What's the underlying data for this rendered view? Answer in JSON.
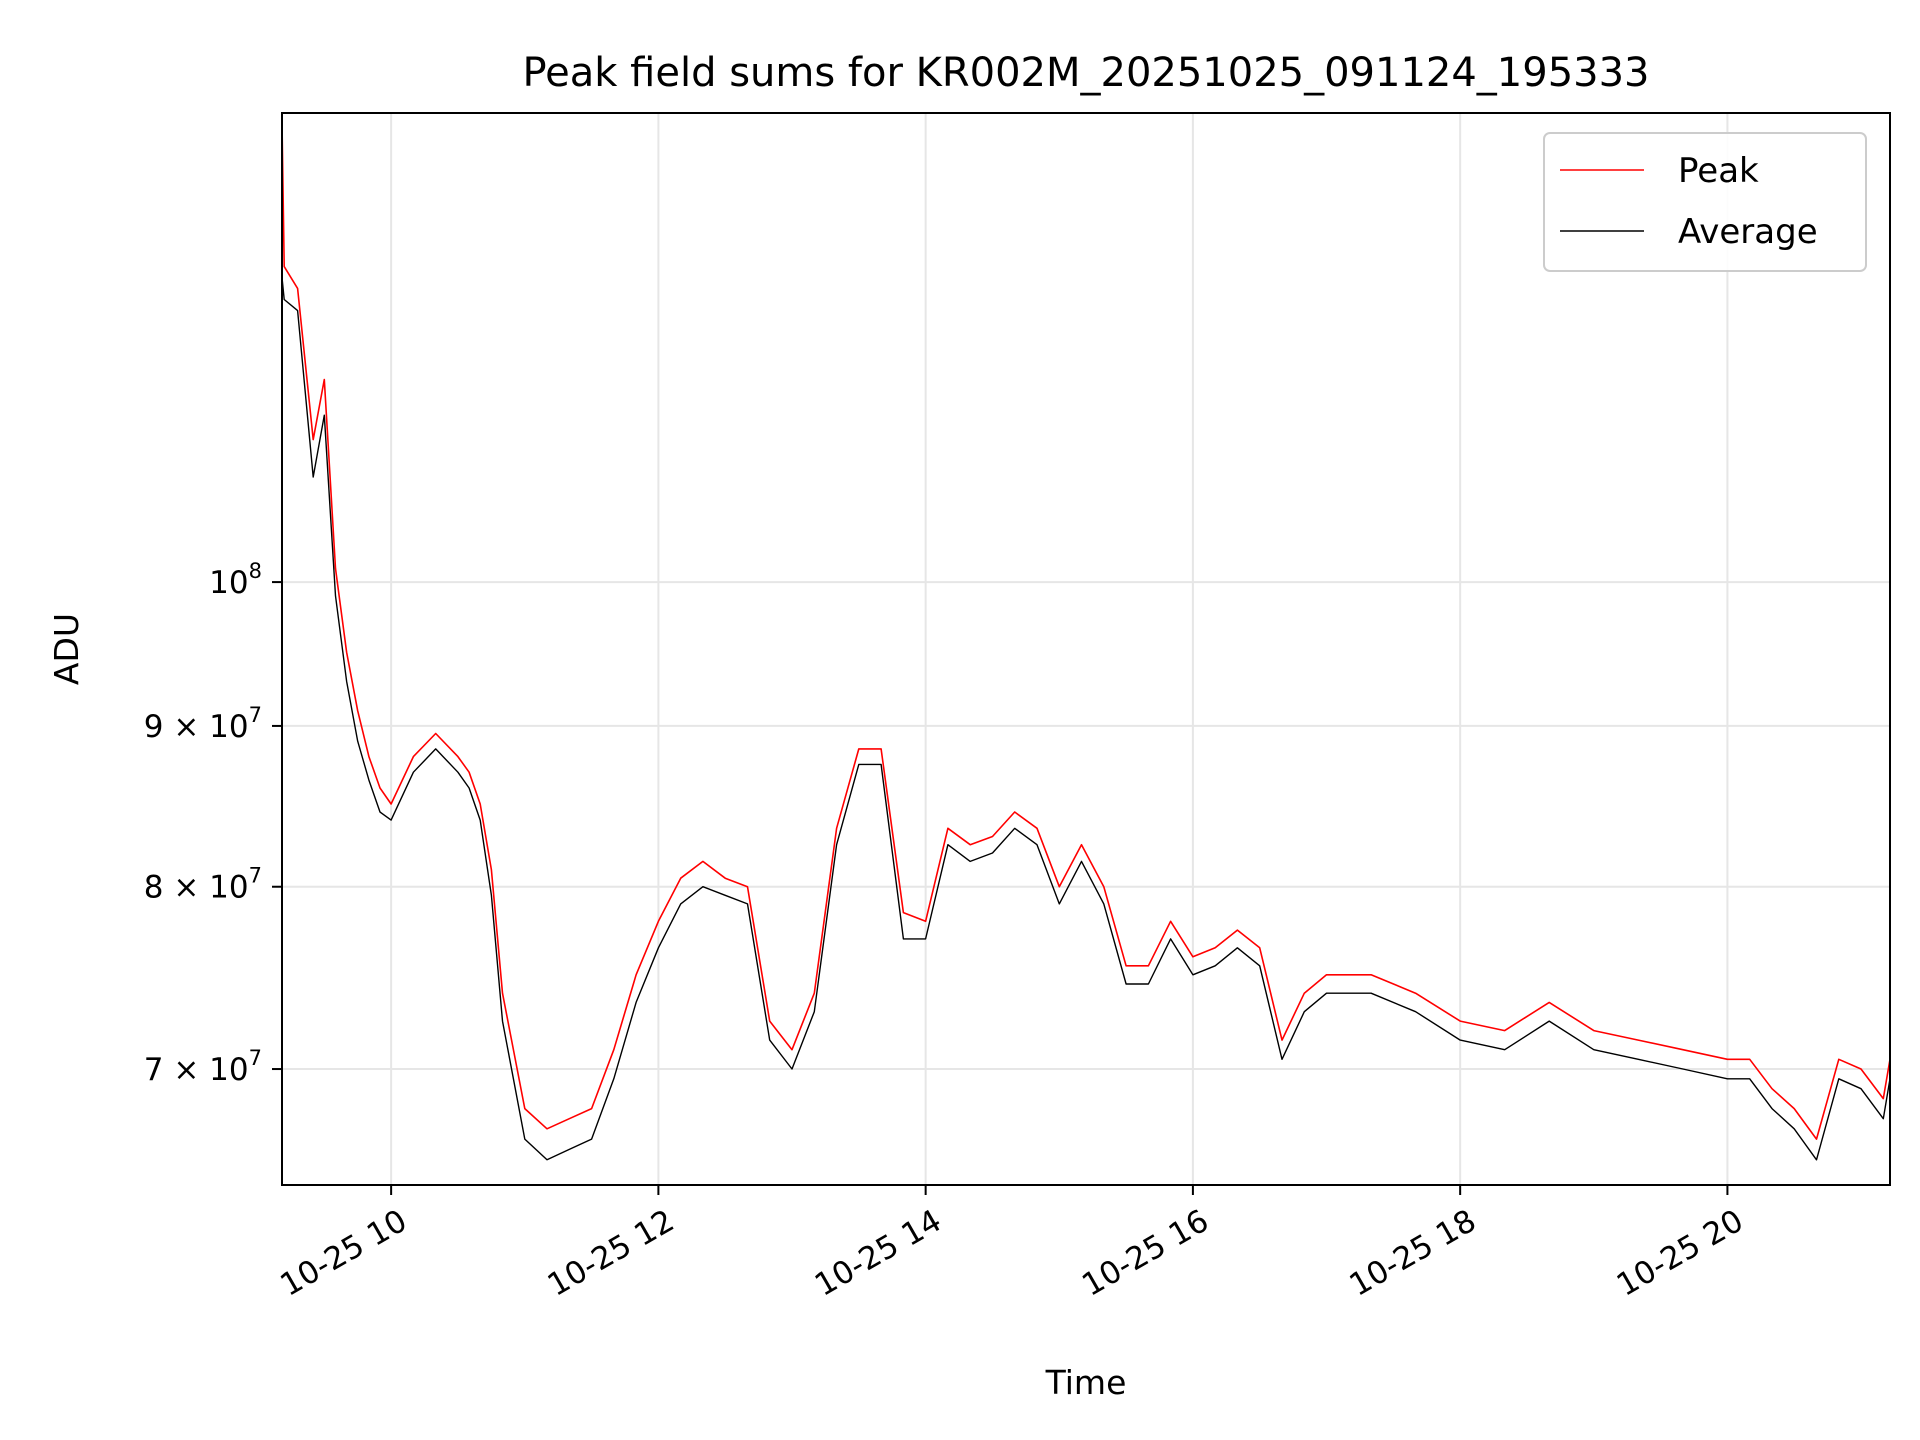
{
  "chart_data": {
    "type": "line",
    "title": "Peak field sums for KR002M_20251025_091124_195333",
    "xlabel": "Time",
    "ylabel": "ADU",
    "y_scale": "log",
    "ylim": [
      64300000,
      141000000
    ],
    "xlim": [
      "2025-10-25 09:11",
      "2025-10-25 21:13"
    ],
    "grid": true,
    "legend_position": "top-right",
    "x_ticks": [
      {
        "label": "10-25 10",
        "value": "2025-10-25 10:00"
      },
      {
        "label": "10-25 12",
        "value": "2025-10-25 12:00"
      },
      {
        "label": "10-25 14",
        "value": "2025-10-25 14:00"
      },
      {
        "label": "10-25 16",
        "value": "2025-10-25 16:00"
      },
      {
        "label": "10-25 18",
        "value": "2025-10-25 18:00"
      },
      {
        "label": "10-25 20",
        "value": "2025-10-25 20:00"
      }
    ],
    "y_ticks": [
      {
        "mantissa": "7",
        "base": "10",
        "exponent": "7",
        "value": 70000000
      },
      {
        "mantissa": "8",
        "base": "10",
        "exponent": "7",
        "value": 80000000
      },
      {
        "mantissa": "9",
        "base": "10",
        "exponent": "7",
        "value": 90000000
      },
      {
        "mantissa": "",
        "base": "10",
        "exponent": "8",
        "value": 100000000
      }
    ],
    "series": [
      {
        "name": "Peak",
        "color": "#ff0000",
        "points": [
          [
            "2025-10-25 09:11",
            140000000
          ],
          [
            "2025-10-25 09:12",
            126000000
          ],
          [
            "2025-10-25 09:18",
            124000000
          ],
          [
            "2025-10-25 09:25",
            111000000
          ],
          [
            "2025-10-25 09:30",
            116000000
          ],
          [
            "2025-10-25 09:35",
            101000000
          ],
          [
            "2025-10-25 09:40",
            95000000
          ],
          [
            "2025-10-25 09:45",
            91000000
          ],
          [
            "2025-10-25 09:50",
            88000000
          ],
          [
            "2025-10-25 09:55",
            86000000
          ],
          [
            "2025-10-25 10:00",
            85000000
          ],
          [
            "2025-10-25 10:10",
            88000000
          ],
          [
            "2025-10-25 10:20",
            89500000
          ],
          [
            "2025-10-25 10:30",
            88000000
          ],
          [
            "2025-10-25 10:35",
            87000000
          ],
          [
            "2025-10-25 10:40",
            85000000
          ],
          [
            "2025-10-25 10:45",
            81000000
          ],
          [
            "2025-10-25 10:50",
            74000000
          ],
          [
            "2025-10-25 11:00",
            68000000
          ],
          [
            "2025-10-25 11:10",
            67000000
          ],
          [
            "2025-10-25 11:20",
            67500000
          ],
          [
            "2025-10-25 11:30",
            68000000
          ],
          [
            "2025-10-25 11:40",
            71000000
          ],
          [
            "2025-10-25 11:50",
            75000000
          ],
          [
            "2025-10-25 12:00",
            78000000
          ],
          [
            "2025-10-25 12:10",
            80500000
          ],
          [
            "2025-10-25 12:20",
            81500000
          ],
          [
            "2025-10-25 12:30",
            80500000
          ],
          [
            "2025-10-25 12:40",
            80000000
          ],
          [
            "2025-10-25 12:50",
            72500000
          ],
          [
            "2025-10-25 13:00",
            71000000
          ],
          [
            "2025-10-25 13:10",
            74000000
          ],
          [
            "2025-10-25 13:20",
            83500000
          ],
          [
            "2025-10-25 13:30",
            88500000
          ],
          [
            "2025-10-25 13:40",
            88500000
          ],
          [
            "2025-10-25 13:50",
            78500000
          ],
          [
            "2025-10-25 14:00",
            78000000
          ],
          [
            "2025-10-25 14:10",
            83500000
          ],
          [
            "2025-10-25 14:20",
            82500000
          ],
          [
            "2025-10-25 14:30",
            83000000
          ],
          [
            "2025-10-25 14:40",
            84500000
          ],
          [
            "2025-10-25 14:50",
            83500000
          ],
          [
            "2025-10-25 15:00",
            80000000
          ],
          [
            "2025-10-25 15:10",
            82500000
          ],
          [
            "2025-10-25 15:20",
            80000000
          ],
          [
            "2025-10-25 15:30",
            75500000
          ],
          [
            "2025-10-25 15:40",
            75500000
          ],
          [
            "2025-10-25 15:50",
            78000000
          ],
          [
            "2025-10-25 16:00",
            76000000
          ],
          [
            "2025-10-25 16:10",
            76500000
          ],
          [
            "2025-10-25 16:20",
            77500000
          ],
          [
            "2025-10-25 16:30",
            76500000
          ],
          [
            "2025-10-25 16:40",
            71500000
          ],
          [
            "2025-10-25 16:50",
            74000000
          ],
          [
            "2025-10-25 17:00",
            75000000
          ],
          [
            "2025-10-25 17:20",
            75000000
          ],
          [
            "2025-10-25 17:40",
            74000000
          ],
          [
            "2025-10-25 18:00",
            72500000
          ],
          [
            "2025-10-25 18:20",
            72000000
          ],
          [
            "2025-10-25 18:40",
            73500000
          ],
          [
            "2025-10-25 19:00",
            72000000
          ],
          [
            "2025-10-25 19:20",
            71500000
          ],
          [
            "2025-10-25 19:40",
            71000000
          ],
          [
            "2025-10-25 20:00",
            70500000
          ],
          [
            "2025-10-25 20:10",
            70500000
          ],
          [
            "2025-10-25 20:20",
            69000000
          ],
          [
            "2025-10-25 20:30",
            68000000
          ],
          [
            "2025-10-25 20:40",
            66500000
          ],
          [
            "2025-10-25 20:50",
            70500000
          ],
          [
            "2025-10-25 21:00",
            70000000
          ],
          [
            "2025-10-25 21:10",
            68500000
          ],
          [
            "2025-10-25 21:13",
            70500000
          ]
        ]
      },
      {
        "name": "Average",
        "color": "#000000",
        "points": [
          [
            "2025-10-25 09:11",
            125000000
          ],
          [
            "2025-10-25 09:12",
            123000000
          ],
          [
            "2025-10-25 09:18",
            122000000
          ],
          [
            "2025-10-25 09:25",
            108000000
          ],
          [
            "2025-10-25 09:30",
            113000000
          ],
          [
            "2025-10-25 09:35",
            99000000
          ],
          [
            "2025-10-25 09:40",
            93000000
          ],
          [
            "2025-10-25 09:45",
            89000000
          ],
          [
            "2025-10-25 09:50",
            86500000
          ],
          [
            "2025-10-25 09:55",
            84500000
          ],
          [
            "2025-10-25 10:00",
            84000000
          ],
          [
            "2025-10-25 10:10",
            87000000
          ],
          [
            "2025-10-25 10:20",
            88500000
          ],
          [
            "2025-10-25 10:30",
            87000000
          ],
          [
            "2025-10-25 10:35",
            86000000
          ],
          [
            "2025-10-25 10:40",
            84000000
          ],
          [
            "2025-10-25 10:45",
            79500000
          ],
          [
            "2025-10-25 10:50",
            72500000
          ],
          [
            "2025-10-25 11:00",
            66500000
          ],
          [
            "2025-10-25 11:10",
            65500000
          ],
          [
            "2025-10-25 11:20",
            66000000
          ],
          [
            "2025-10-25 11:30",
            66500000
          ],
          [
            "2025-10-25 11:40",
            69500000
          ],
          [
            "2025-10-25 11:50",
            73500000
          ],
          [
            "2025-10-25 12:00",
            76500000
          ],
          [
            "2025-10-25 12:10",
            79000000
          ],
          [
            "2025-10-25 12:20",
            80000000
          ],
          [
            "2025-10-25 12:30",
            79500000
          ],
          [
            "2025-10-25 12:40",
            79000000
          ],
          [
            "2025-10-25 12:50",
            71500000
          ],
          [
            "2025-10-25 13:00",
            70000000
          ],
          [
            "2025-10-25 13:10",
            73000000
          ],
          [
            "2025-10-25 13:20",
            82500000
          ],
          [
            "2025-10-25 13:30",
            87500000
          ],
          [
            "2025-10-25 13:40",
            87500000
          ],
          [
            "2025-10-25 13:50",
            77000000
          ],
          [
            "2025-10-25 14:00",
            77000000
          ],
          [
            "2025-10-25 14:10",
            82500000
          ],
          [
            "2025-10-25 14:20",
            81500000
          ],
          [
            "2025-10-25 14:30",
            82000000
          ],
          [
            "2025-10-25 14:40",
            83500000
          ],
          [
            "2025-10-25 14:50",
            82500000
          ],
          [
            "2025-10-25 15:00",
            79000000
          ],
          [
            "2025-10-25 15:10",
            81500000
          ],
          [
            "2025-10-25 15:20",
            79000000
          ],
          [
            "2025-10-25 15:30",
            74500000
          ],
          [
            "2025-10-25 15:40",
            74500000
          ],
          [
            "2025-10-25 15:50",
            77000000
          ],
          [
            "2025-10-25 16:00",
            75000000
          ],
          [
            "2025-10-25 16:10",
            75500000
          ],
          [
            "2025-10-25 16:20",
            76500000
          ],
          [
            "2025-10-25 16:30",
            75500000
          ],
          [
            "2025-10-25 16:40",
            70500000
          ],
          [
            "2025-10-25 16:50",
            73000000
          ],
          [
            "2025-10-25 17:00",
            74000000
          ],
          [
            "2025-10-25 17:20",
            74000000
          ],
          [
            "2025-10-25 17:40",
            73000000
          ],
          [
            "2025-10-25 18:00",
            71500000
          ],
          [
            "2025-10-25 18:20",
            71000000
          ],
          [
            "2025-10-25 18:40",
            72500000
          ],
          [
            "2025-10-25 19:00",
            71000000
          ],
          [
            "2025-10-25 19:20",
            70500000
          ],
          [
            "2025-10-25 19:40",
            70000000
          ],
          [
            "2025-10-25 20:00",
            69500000
          ],
          [
            "2025-10-25 20:10",
            69500000
          ],
          [
            "2025-10-25 20:20",
            68000000
          ],
          [
            "2025-10-25 20:30",
            67000000
          ],
          [
            "2025-10-25 20:40",
            65500000
          ],
          [
            "2025-10-25 20:50",
            69500000
          ],
          [
            "2025-10-25 21:00",
            69000000
          ],
          [
            "2025-10-25 21:10",
            67500000
          ],
          [
            "2025-10-25 21:13",
            69500000
          ]
        ]
      }
    ]
  }
}
